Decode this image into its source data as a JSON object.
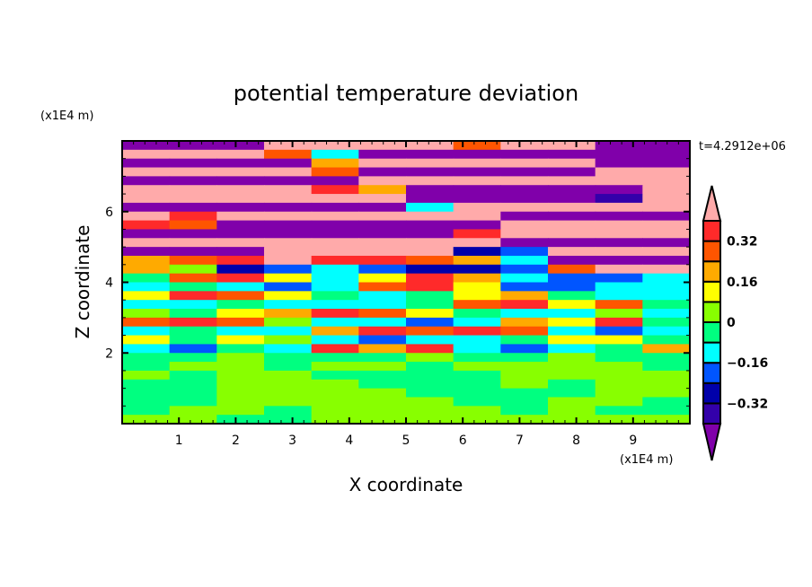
{
  "chart_data": {
    "type": "heatmap",
    "title": "potential temperature deviation",
    "xlabel": "X coordinate",
    "ylabel": "Z coordinate",
    "x_unit": "(x1E4 m)",
    "y_unit": "(x1E4 m)",
    "time_label": "t=4.2912e+06",
    "xlim": [
      0,
      10
    ],
    "ylim": [
      0,
      8
    ],
    "x_ticks": [
      1,
      2,
      3,
      4,
      5,
      6,
      7,
      8,
      9
    ],
    "y_ticks": [
      2,
      4,
      6
    ],
    "levels": [
      -0.4,
      -0.32,
      -0.24,
      -0.16,
      -0.08,
      0,
      0.08,
      0.16,
      0.24,
      0.32,
      0.4
    ],
    "level_colors": [
      "#8000aa",
      "#3300aa",
      "#0000aa",
      "#0055ff",
      "#00ffff",
      "#00ff80",
      "#88ff00",
      "#ffff00",
      "#ffaa00",
      "#ff5500",
      "#ff2a2a",
      "#ffaaaa"
    ],
    "colorbar_labels": [
      {
        "value": 0.32,
        "text": "0.32"
      },
      {
        "value": 0.16,
        "text": "0.16"
      },
      {
        "value": 0,
        "text": "0"
      },
      {
        "value": -0.16,
        "text": "−0.16"
      },
      {
        "value": -0.32,
        "text": "−0.32"
      }
    ],
    "grid_note": "rows from top (z=8) to bottom (z=0), columns x=0..10",
    "z": [
      [
        -0.5,
        -0.5,
        -0.5,
        0.5,
        0.5,
        0.5,
        0.5,
        0.28,
        0.5,
        0.5,
        -0.5,
        -0.5
      ],
      [
        0.5,
        0.5,
        0.5,
        0.28,
        -0.12,
        -0.5,
        -0.5,
        -0.5,
        -0.5,
        -0.5,
        -0.5,
        -0.5
      ],
      [
        -0.5,
        -0.5,
        -0.5,
        -0.5,
        0.2,
        0.5,
        0.5,
        0.5,
        0.5,
        0.5,
        -0.5,
        -0.5
      ],
      [
        0.5,
        0.5,
        0.5,
        0.5,
        0.28,
        -0.5,
        -0.5,
        -0.5,
        -0.5,
        -0.5,
        0.5,
        0.5
      ],
      [
        -0.5,
        -0.5,
        -0.5,
        -0.5,
        -0.5,
        0.5,
        0.5,
        0.5,
        0.5,
        0.5,
        0.5,
        0.5
      ],
      [
        0.5,
        0.5,
        0.5,
        0.5,
        0.36,
        0.2,
        -0.5,
        -0.5,
        -0.5,
        -0.5,
        -0.5,
        0.5
      ],
      [
        0.5,
        0.5,
        0.5,
        0.5,
        0.5,
        0.5,
        -0.5,
        -0.5,
        -0.5,
        -0.5,
        -0.36,
        0.5
      ],
      [
        -0.5,
        -0.5,
        -0.5,
        -0.5,
        -0.5,
        -0.5,
        -0.12,
        0.5,
        0.5,
        0.5,
        0.5,
        0.5
      ],
      [
        0.5,
        0.36,
        0.5,
        0.5,
        0.5,
        0.5,
        0.5,
        0.5,
        -0.5,
        -0.5,
        -0.5,
        -0.5
      ],
      [
        0.36,
        0.28,
        -0.5,
        -0.5,
        -0.5,
        -0.5,
        -0.5,
        -0.5,
        0.5,
        0.5,
        0.5,
        0.5
      ],
      [
        -0.5,
        -0.5,
        -0.5,
        -0.5,
        -0.5,
        -0.5,
        -0.5,
        0.36,
        0.5,
        0.5,
        0.5,
        0.5
      ],
      [
        0.5,
        0.5,
        0.5,
        0.5,
        0.5,
        0.5,
        0.5,
        0.5,
        -0.5,
        -0.5,
        -0.5,
        -0.5
      ],
      [
        -0.5,
        -0.5,
        -0.5,
        0.5,
        0.5,
        0.5,
        0.5,
        -0.28,
        -0.2,
        0.5,
        0.5,
        0.5
      ],
      [
        0.2,
        0.28,
        0.36,
        0.5,
        0.36,
        0.36,
        0.28,
        0.2,
        -0.12,
        -0.5,
        -0.5,
        -0.5
      ],
      [
        0.2,
        0.04,
        -0.28,
        -0.2,
        -0.12,
        -0.2,
        -0.28,
        -0.28,
        -0.2,
        0.28,
        0.5,
        0.5
      ],
      [
        -0.04,
        0.28,
        0.36,
        0.12,
        -0.12,
        0.12,
        0.36,
        0.2,
        -0.12,
        -0.2,
        -0.2,
        -0.12
      ],
      [
        -0.12,
        -0.04,
        -0.12,
        -0.2,
        -0.12,
        0.28,
        0.36,
        0.12,
        -0.2,
        -0.2,
        -0.12,
        -0.12
      ],
      [
        0.12,
        0.36,
        0.28,
        0.12,
        -0.04,
        -0.12,
        -0.04,
        0.12,
        0.2,
        -0.04,
        -0.12,
        -0.12
      ],
      [
        -0.12,
        -0.12,
        -0.04,
        -0.12,
        -0.12,
        -0.12,
        -0.04,
        0.28,
        0.36,
        0.12,
        0.28,
        -0.04
      ],
      [
        0.04,
        -0.04,
        0.12,
        0.2,
        0.36,
        0.28,
        0.12,
        -0.04,
        -0.12,
        -0.12,
        0.04,
        -0.12
      ],
      [
        0.28,
        0.36,
        0.28,
        0.04,
        -0.12,
        -0.12,
        -0.2,
        -0.12,
        0.2,
        0.12,
        0.36,
        -0.04
      ],
      [
        -0.12,
        -0.04,
        -0.12,
        -0.12,
        0.2,
        0.36,
        0.28,
        0.36,
        0.28,
        -0.12,
        -0.2,
        -0.12
      ],
      [
        0.12,
        -0.04,
        0.12,
        0.04,
        -0.12,
        -0.2,
        -0.12,
        -0.12,
        -0.04,
        0.12,
        0.12,
        -0.04
      ],
      [
        -0.12,
        -0.2,
        -0.04,
        -0.12,
        0.36,
        0.2,
        0.36,
        -0.12,
        -0.2,
        -0.12,
        -0.04,
        0.2
      ],
      [
        -0.04,
        -0.04,
        0.04,
        -0.04,
        -0.04,
        -0.04,
        0.04,
        -0.04,
        -0.04,
        0.04,
        -0.04,
        -0.04
      ],
      [
        -0.04,
        0.04,
        0.04,
        -0.04,
        0.04,
        0.04,
        -0.04,
        0.04,
        0.04,
        0.04,
        0.04,
        -0.04
      ],
      [
        0.04,
        -0.04,
        0.04,
        0.04,
        -0.04,
        -0.04,
        -0.04,
        -0.04,
        0.04,
        0.04,
        0.04,
        0.04
      ],
      [
        -0.04,
        -0.04,
        0.04,
        0.04,
        0.04,
        -0.04,
        -0.04,
        -0.04,
        0.04,
        -0.04,
        0.04,
        0.04
      ],
      [
        -0.04,
        -0.04,
        0.04,
        0.04,
        0.04,
        0.04,
        -0.04,
        -0.04,
        -0.04,
        -0.04,
        0.04,
        0.04
      ],
      [
        -0.04,
        -0.04,
        0.04,
        0.04,
        0.04,
        0.04,
        0.04,
        -0.04,
        -0.04,
        0.04,
        0.04,
        -0.04
      ],
      [
        -0.04,
        0.04,
        0.04,
        -0.04,
        0.04,
        0.04,
        0.04,
        0.04,
        -0.04,
        0.04,
        -0.04,
        -0.04
      ],
      [
        0.04,
        0.04,
        -0.04,
        -0.04,
        0.04,
        0.04,
        0.04,
        0.04,
        0.04,
        0.04,
        0.04,
        0.04
      ]
    ]
  }
}
